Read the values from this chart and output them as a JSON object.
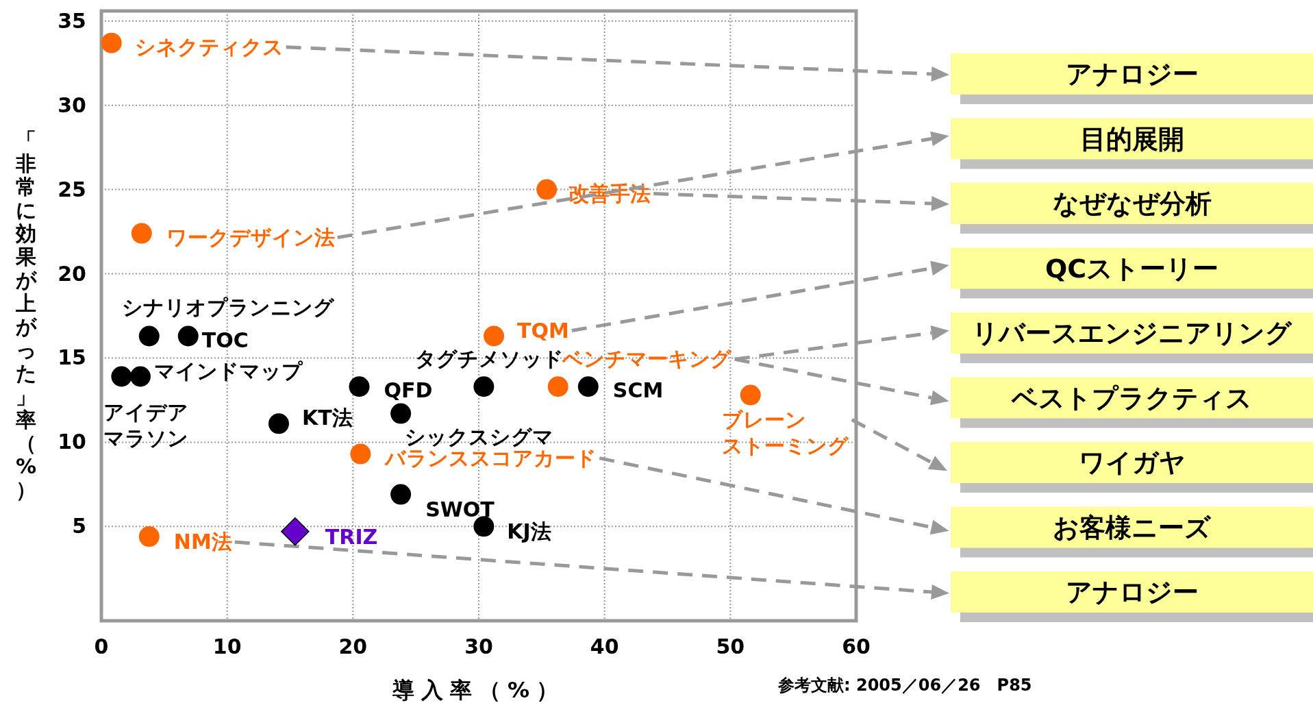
{
  "chart_data": {
    "type": "scatter",
    "xlabel": "導入率（%）",
    "ylabel": "「非常に効果が上がった」率（%）",
    "xlim": [
      0,
      60
    ],
    "ylim": [
      -0.6,
      35.6
    ],
    "xticks": [
      0,
      10,
      20,
      30,
      40,
      50,
      60
    ],
    "yticks": [
      5,
      10,
      15,
      20,
      25,
      30,
      35
    ],
    "grid": true,
    "series": [
      {
        "color": "#000000",
        "marker": "circle",
        "x": [
          3.8,
          6.9,
          1.6,
          3.1,
          20.5,
          14.1,
          23.8,
          30.4,
          38.7,
          23.8,
          30.4
        ],
        "values": [
          16.3,
          16.3,
          13.9,
          13.9,
          13.3,
          11.1,
          11.7,
          13.3,
          13.3,
          6.9,
          5.0
        ],
        "value_labels": [
          "シナリオプランニング",
          "TOC",
          "アイデアマラソン",
          "マインドマップ",
          "QFD",
          "KT法",
          "シックスシグマ",
          "タグチメソッド",
          "SCM",
          "SWOT",
          "KJ法"
        ]
      },
      {
        "color": "#ff6600",
        "marker": "circle",
        "x": [
          0.8,
          3.2,
          35.4,
          31.2,
          36.3,
          51.6,
          20.6,
          3.8
        ],
        "values": [
          33.7,
          22.4,
          25.0,
          16.3,
          13.3,
          12.8,
          9.3,
          4.4
        ],
        "value_labels": [
          "シネクティクス",
          "ワークデザイン法",
          "改善手法",
          "TQM",
          "ベンチマーキング",
          "ブレーンストーミング",
          "バランススコアカード",
          "NM法"
        ]
      },
      {
        "color": "#6600cc",
        "marker": "diamond",
        "x": [
          15.4
        ],
        "values": [
          4.7
        ],
        "value_labels": [
          "TRIZ"
        ]
      }
    ],
    "annotations": [
      "アナロジー",
      "目的展開",
      "なぜなぜ分析",
      "QCストーリー",
      "リバースエンジニアリング",
      "ベストプラクティス",
      "ワイガヤ",
      "お客様ニーズ",
      "アナロジー",
      "参考文献: 2005／06／26　P85"
    ]
  }
}
